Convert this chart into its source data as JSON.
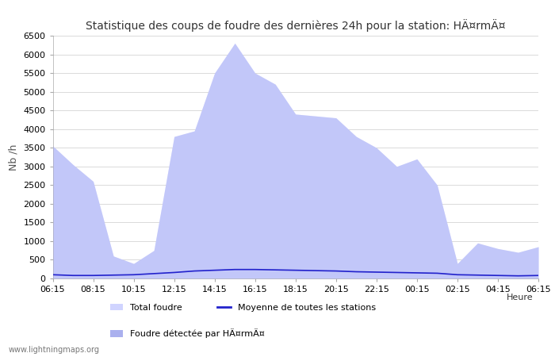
{
  "title": "Statistique des coups de foudre des dernières 24h pour la station: HÄ¤rmÄ¤",
  "xlabel": "Heure",
  "ylabel": "Nb /h",
  "ylim_max": 6500,
  "background_color": "#ffffff",
  "grid_color": "#cccccc",
  "watermark": "www.lightningmaps.org",
  "x_labels": [
    "06:15",
    "08:15",
    "10:15",
    "12:15",
    "14:15",
    "16:15",
    "18:15",
    "20:15",
    "22:15",
    "00:15",
    "02:15",
    "04:15",
    "06:15"
  ],
  "total_foudre_color": "#d0d4ff",
  "detected_color": "#aab0ee",
  "mean_color": "#2222cc",
  "total_foudre": [
    3550,
    3050,
    2600,
    600,
    400,
    750,
    3800,
    3950,
    5500,
    6300,
    5500,
    5200,
    4400,
    4350,
    4300,
    3800,
    3500,
    3000,
    3200,
    2500,
    400,
    950,
    800,
    700,
    850
  ],
  "mean_line": [
    100,
    80,
    80,
    90,
    100,
    130,
    160,
    200,
    220,
    240,
    240,
    230,
    220,
    210,
    200,
    180,
    170,
    160,
    150,
    140,
    100,
    90,
    80,
    70,
    80
  ],
  "n_points": 25,
  "yticks": [
    0,
    500,
    1000,
    1500,
    2000,
    2500,
    3000,
    3500,
    4000,
    4500,
    5000,
    5500,
    6000,
    6500
  ]
}
